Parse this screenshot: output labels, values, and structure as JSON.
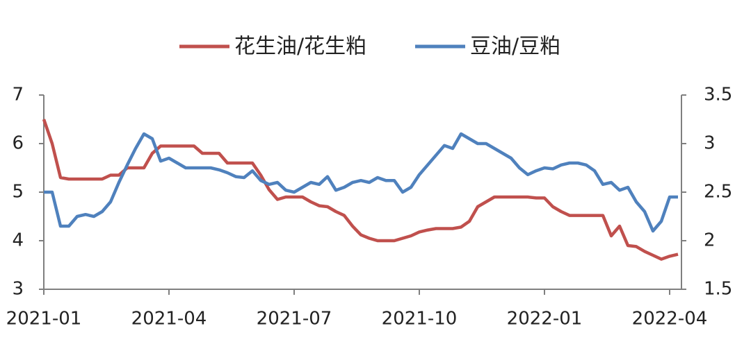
{
  "chart_data": {
    "type": "line",
    "categories": [
      "2021-01",
      null,
      null,
      null,
      null,
      null,
      null,
      null,
      null,
      null,
      null,
      null,
      null,
      null,
      null,
      "2021-04",
      null,
      null,
      null,
      null,
      null,
      null,
      null,
      null,
      null,
      null,
      null,
      null,
      null,
      null,
      "2021-07",
      null,
      null,
      null,
      null,
      null,
      null,
      null,
      null,
      null,
      null,
      null,
      null,
      null,
      null,
      "2021-10",
      null,
      null,
      null,
      null,
      null,
      null,
      null,
      null,
      null,
      null,
      null,
      null,
      null,
      null,
      "2022-01",
      null,
      null,
      null,
      null,
      null,
      null,
      null,
      null,
      null,
      null,
      null,
      null,
      null,
      null,
      "2022-04",
      null
    ],
    "series": [
      {
        "name": "花生油/花生粕",
        "color": "#c0504d",
        "axis": "y",
        "values": [
          6.5,
          6.0,
          5.3,
          5.27,
          5.27,
          5.27,
          5.27,
          5.27,
          5.35,
          5.35,
          5.5,
          5.5,
          5.5,
          5.8,
          5.95,
          5.95,
          5.95,
          5.95,
          5.95,
          5.8,
          5.8,
          5.8,
          5.6,
          5.6,
          5.6,
          5.6,
          5.35,
          5.05,
          4.85,
          4.9,
          4.9,
          4.9,
          4.8,
          4.72,
          4.7,
          4.6,
          4.52,
          4.3,
          4.12,
          4.05,
          4.0,
          4.0,
          4.0,
          4.05,
          4.1,
          4.18,
          4.22,
          4.25,
          4.25,
          4.25,
          4.28,
          4.4,
          4.7,
          4.8,
          4.9,
          4.9,
          4.9,
          4.9,
          4.9,
          4.88,
          4.88,
          4.7,
          4.6,
          4.52,
          4.52,
          4.52,
          4.52,
          4.52,
          4.1,
          4.3,
          3.9,
          3.88,
          3.78,
          3.7,
          3.62,
          3.68,
          3.72
        ]
      },
      {
        "name": "豆油/豆粕",
        "color": "#4f81bd",
        "axis": "y2",
        "values": [
          2.5,
          2.5,
          2.15,
          2.15,
          2.25,
          2.27,
          2.25,
          2.3,
          2.4,
          2.6,
          2.78,
          2.95,
          3.1,
          3.05,
          2.82,
          2.85,
          2.8,
          2.75,
          2.75,
          2.75,
          2.75,
          2.73,
          2.7,
          2.66,
          2.65,
          2.72,
          2.62,
          2.58,
          2.6,
          2.52,
          2.5,
          2.55,
          2.6,
          2.58,
          2.66,
          2.52,
          2.55,
          2.6,
          2.62,
          2.6,
          2.65,
          2.62,
          2.62,
          2.5,
          2.55,
          2.68,
          2.78,
          2.88,
          2.98,
          2.95,
          3.1,
          3.05,
          3.0,
          3.0,
          2.95,
          2.9,
          2.85,
          2.75,
          2.68,
          2.72,
          2.75,
          2.74,
          2.78,
          2.8,
          2.8,
          2.78,
          2.72,
          2.58,
          2.6,
          2.52,
          2.55,
          2.4,
          2.3,
          2.1,
          2.2,
          2.45,
          2.45
        ]
      }
    ],
    "ylim": [
      3,
      7
    ],
    "yticks": [
      3,
      4,
      5,
      6,
      7
    ],
    "y2lim": [
      1.5,
      3.5
    ],
    "y2ticks": [
      1.5,
      2,
      2.5,
      3,
      3.5
    ],
    "legend": "top",
    "grid": false
  }
}
